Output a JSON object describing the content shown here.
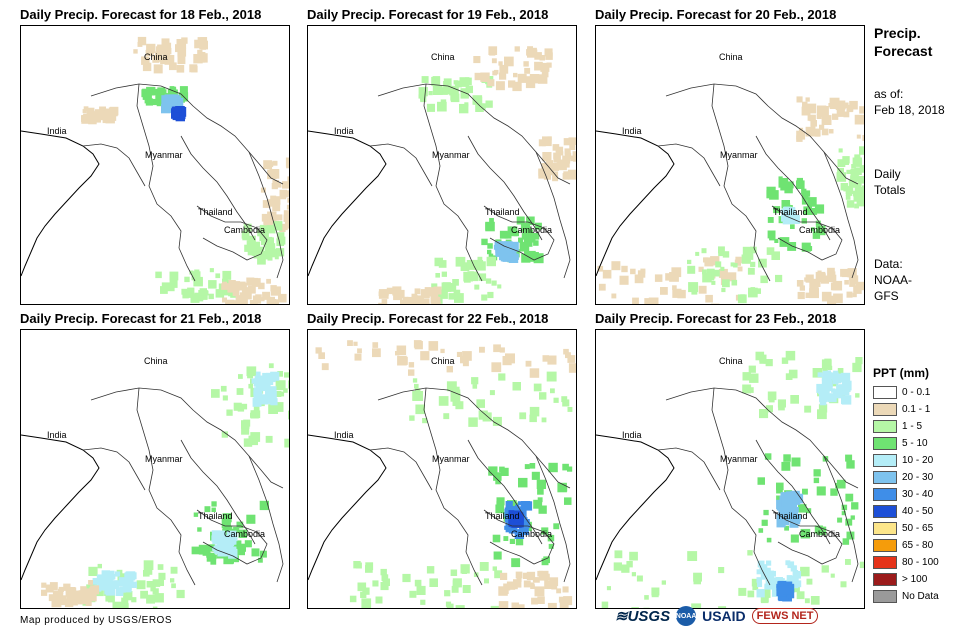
{
  "panels": [
    {
      "title": "Daily Precip. Forecast for 18 Feb., 2018",
      "labels": {
        "china": "China",
        "india": "India",
        "myanmar": "Myanmar",
        "thailand": "Thailand",
        "cambodia": "Cambodia"
      }
    },
    {
      "title": "Daily Precip. Forecast for 19 Feb., 2018",
      "labels": {
        "china": "China",
        "india": "India",
        "myanmar": "Myanmar",
        "thailand": "Thailand",
        "cambodia": "Cambodia"
      }
    },
    {
      "title": "Daily Precip. Forecast for 20 Feb., 2018",
      "labels": {
        "china": "China",
        "india": "India",
        "myanmar": "Myanmar",
        "thailand": "Thailand",
        "cambodia": "Cambodia"
      }
    },
    {
      "title": "Daily Precip. Forecast for 21 Feb., 2018",
      "labels": {
        "china": "China",
        "india": "India",
        "myanmar": "Myanmar",
        "thailand": "Thailand",
        "cambodia": "Cambodia"
      }
    },
    {
      "title": "Daily Precip. Forecast for 22 Feb., 2018",
      "labels": {
        "china": "China",
        "india": "India",
        "myanmar": "Myanmar",
        "thailand": "Thailand",
        "cambodia": "Cambodia"
      }
    },
    {
      "title": "Daily Precip. Forecast for 23 Feb., 2018",
      "labels": {
        "china": "China",
        "india": "India",
        "myanmar": "Myanmar",
        "thailand": "Thailand",
        "cambodia": "Cambodia"
      }
    }
  ],
  "sidebar": {
    "title_line1": "Precip.",
    "title_line2": "Forecast",
    "asof_label": "as of:",
    "asof_date": "Feb 18, 2018",
    "totals_line1": "Daily",
    "totals_line2": "Totals",
    "data_label": "Data:",
    "data_line1": "NOAA-",
    "data_line2": "GFS"
  },
  "legend": {
    "title": "PPT (mm)",
    "items": [
      {
        "label": "0 - 0.1",
        "color": "#ffffff"
      },
      {
        "label": "0.1 - 1",
        "color": "#ecd9b8"
      },
      {
        "label": "1 - 5",
        "color": "#b5f7a6"
      },
      {
        "label": "5 - 10",
        "color": "#6fe372"
      },
      {
        "label": "10 - 20",
        "color": "#b4edf7"
      },
      {
        "label": "20 - 30",
        "color": "#7ec3ee"
      },
      {
        "label": "30 - 40",
        "color": "#3f8ee8"
      },
      {
        "label": "40 - 50",
        "color": "#1d4fd7"
      },
      {
        "label": "50 - 65",
        "color": "#fde68a"
      },
      {
        "label": "65 - 80",
        "color": "#f59c0b"
      },
      {
        "label": "80 - 100",
        "color": "#e5331a"
      },
      {
        "label": "> 100",
        "color": "#9b1b1b"
      },
      {
        "label": "No Data",
        "color": "#9a9a9a"
      }
    ]
  },
  "footer": {
    "credit": "Map produced by USGS/EROS"
  },
  "logos": {
    "usgs": "≋USGS",
    "noaa": "NOAA",
    "usaid": "USAID",
    "fews": "FEWS NET"
  }
}
